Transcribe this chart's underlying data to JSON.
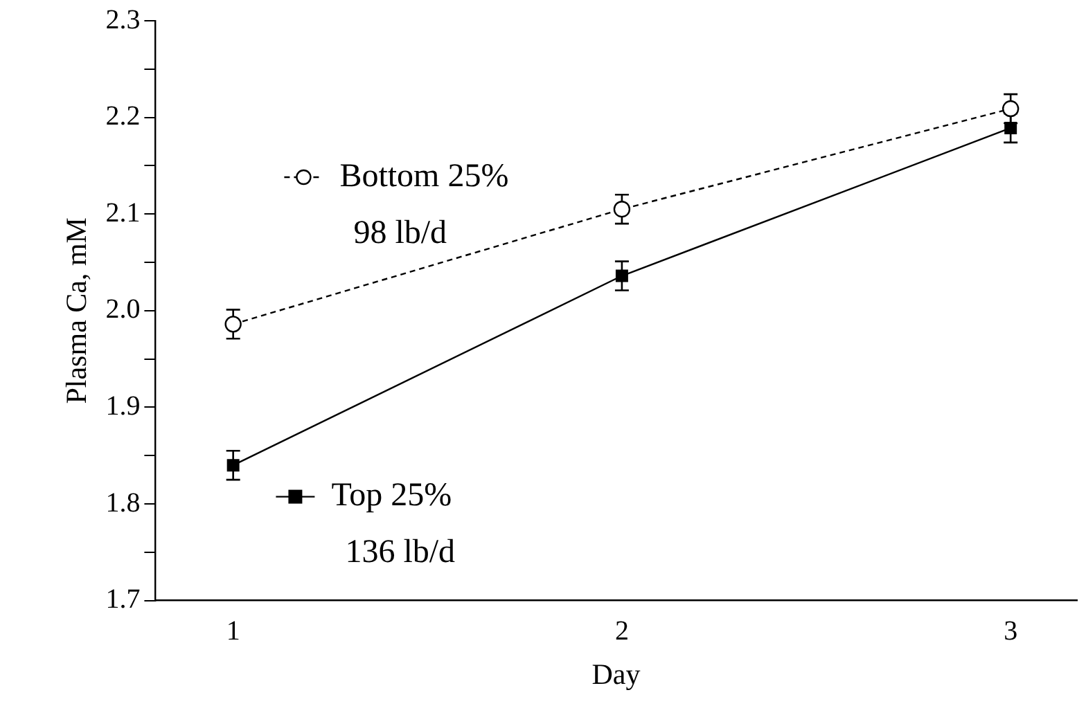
{
  "chart_data": {
    "type": "line",
    "xlabel": "Day",
    "ylabel": "Plasma Ca, mM",
    "x": [
      1,
      2,
      3
    ],
    "series": [
      {
        "name": "Bottom 25%",
        "color": "#000000",
        "values": [
          1.986,
          2.105,
          2.209
        ],
        "errors": [
          0.015,
          0.015,
          0.015
        ],
        "marker": "circle",
        "line_style": "dashed"
      },
      {
        "name": "Top 25%",
        "color": "#000000",
        "values": [
          1.84,
          2.036,
          2.189
        ],
        "errors": [
          0.015,
          0.015,
          0.015
        ],
        "marker": "square",
        "line_style": "solid"
      }
    ],
    "annotations": [
      "98 lb/d",
      "136 lb/d"
    ],
    "legend": "left",
    "grid": false,
    "xlim": [
      0.8,
      3.17
    ],
    "xticks": [
      1,
      2,
      3
    ],
    "ylim": [
      1.7,
      2.3
    ],
    "yticks": [
      {
        "value": 1.7,
        "label": "1.7"
      },
      {
        "value": 1.75,
        "label": null
      },
      {
        "value": 1.8,
        "label": "1.8"
      },
      {
        "value": 1.85,
        "label": null
      },
      {
        "value": 1.9,
        "label": "1.9"
      },
      {
        "value": 1.95,
        "label": null
      },
      {
        "value": 2.0,
        "label": "2.0"
      },
      {
        "value": 2.05,
        "label": null
      },
      {
        "value": 2.1,
        "label": "2.1"
      },
      {
        "value": 2.15,
        "label": null
      },
      {
        "value": 2.2,
        "label": "2.2"
      },
      {
        "value": 2.25,
        "label": null
      },
      {
        "value": 2.3,
        "label": "2.3"
      }
    ]
  }
}
